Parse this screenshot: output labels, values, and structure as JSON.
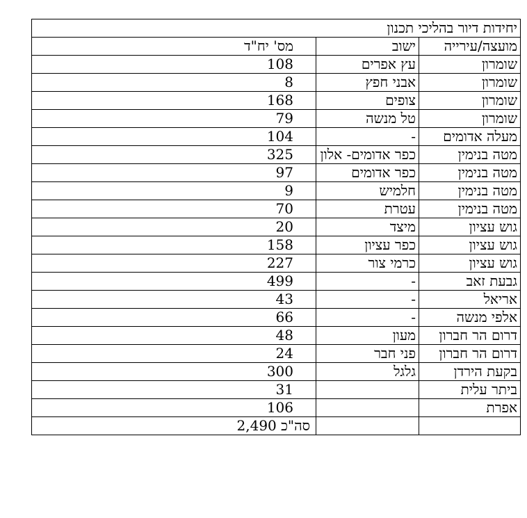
{
  "table": {
    "title": "יחידות דיור בהליכי תכנון",
    "headers": {
      "council": "מועצה/עירייה",
      "settlement": "ישוב",
      "units": "מס' יח\"ד"
    },
    "rows": [
      {
        "council": "שומרון",
        "settlement": "עץ אפרים",
        "units": "108"
      },
      {
        "council": "שומרון",
        "settlement": "אבני חפץ",
        "units": "8"
      },
      {
        "council": "שומרון",
        "settlement": "צופים",
        "units": "168"
      },
      {
        "council": "שומרון",
        "settlement": "טל מנשה",
        "units": "79"
      },
      {
        "council": "מעלה אדומים",
        "settlement": "-",
        "units": "104"
      },
      {
        "council": "מטה בנימין",
        "settlement": "כפר אדומים- אלון",
        "units": "325"
      },
      {
        "council": "מטה בנימין",
        "settlement": "כפר אדומים",
        "units": "97"
      },
      {
        "council": "מטה בנימין",
        "settlement": "חלמיש",
        "units": "9"
      },
      {
        "council": "מטה בנימין",
        "settlement": "עטרת",
        "units": "70"
      },
      {
        "council": "גוש עציון",
        "settlement": "מיצד",
        "units": "20"
      },
      {
        "council": "גוש עציון",
        "settlement": "כפר עציון",
        "units": "158"
      },
      {
        "council": "גוש עציון",
        "settlement": "כרמי צור",
        "units": "227"
      },
      {
        "council": "גבעת זאב",
        "settlement": "-",
        "units": "499"
      },
      {
        "council": "אריאל",
        "settlement": "-",
        "units": "43"
      },
      {
        "council": "אלפי מנשה",
        "settlement": "-",
        "units": "66"
      },
      {
        "council": "דרום הר חברון",
        "settlement": "מעון",
        "units": "48"
      },
      {
        "council": "דרום הר חברון",
        "settlement": "פני חבר",
        "units": "24"
      },
      {
        "council": "בקעת הירדן",
        "settlement": "גלגל",
        "units": "300"
      },
      {
        "council": "ביתר עלית",
        "settlement": "",
        "units": "31"
      },
      {
        "council": "אפרת",
        "settlement": "",
        "units": "106"
      }
    ],
    "total": {
      "label": "סה\"כ",
      "value": "2,490"
    }
  }
}
